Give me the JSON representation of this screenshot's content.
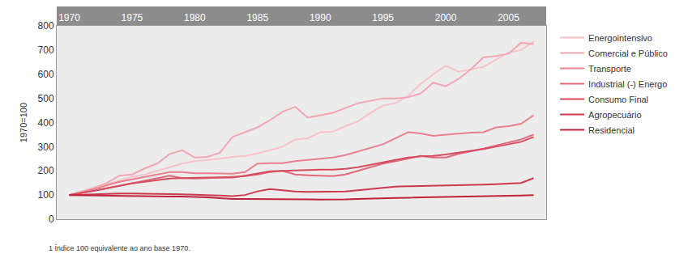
{
  "chart_data": {
    "type": "line",
    "y_label": "1970=100",
    "note": "1 Índice 100 equivalente ao ano base 1970.",
    "x": [
      1970,
      1971,
      1972,
      1973,
      1974,
      1975,
      1976,
      1977,
      1978,
      1979,
      1980,
      1981,
      1982,
      1983,
      1984,
      1985,
      1986,
      1987,
      1988,
      1989,
      1990,
      1991,
      1992,
      1993,
      1994,
      1995,
      1996,
      1997,
      1998,
      1999,
      2000,
      2001,
      2002,
      2003,
      2004,
      2005,
      2006,
      2007
    ],
    "xlim": [
      1969,
      2008
    ],
    "xticks": [
      1970,
      1975,
      1980,
      1985,
      1990,
      1995,
      2000,
      2005
    ],
    "ylim": [
      0,
      800
    ],
    "yticks": [
      0,
      100,
      200,
      300,
      400,
      500,
      600,
      700,
      800
    ],
    "grid": false,
    "legend": "right",
    "series": [
      {
        "name": "Energointensivo",
        "color": "#f7c3cc",
        "values": [
          100,
          115,
          130,
          145,
          160,
          175,
          185,
          200,
          215,
          230,
          240,
          245,
          250,
          258,
          262,
          272,
          285,
          300,
          330,
          335,
          360,
          362,
          385,
          405,
          440,
          470,
          480,
          510,
          560,
          600,
          635,
          610,
          620,
          630,
          660,
          690,
          700,
          735
        ]
      },
      {
        "name": "Comercial e Público",
        "color": "#f2a6b3",
        "values": [
          100,
          115,
          130,
          150,
          180,
          185,
          210,
          230,
          270,
          285,
          255,
          258,
          275,
          340,
          360,
          380,
          410,
          445,
          465,
          420,
          430,
          440,
          460,
          480,
          490,
          500,
          500,
          505,
          520,
          565,
          550,
          580,
          620,
          670,
          675,
          685,
          730,
          725
        ]
      },
      {
        "name": "Transporte",
        "color": "#e8808f",
        "values": [
          100,
          110,
          125,
          140,
          155,
          165,
          175,
          185,
          195,
          195,
          190,
          190,
          188,
          188,
          195,
          230,
          232,
          232,
          240,
          245,
          250,
          255,
          265,
          280,
          295,
          310,
          335,
          360,
          355,
          345,
          350,
          355,
          358,
          360,
          380,
          385,
          395,
          430
        ]
      },
      {
        "name": "Industrial (-) Energo",
        "color": "#e06a7b",
        "values": [
          100,
          108,
          118,
          128,
          138,
          148,
          158,
          168,
          180,
          170,
          168,
          170,
          172,
          175,
          178,
          185,
          195,
          200,
          185,
          182,
          180,
          178,
          185,
          200,
          215,
          230,
          240,
          252,
          262,
          255,
          255,
          270,
          280,
          292,
          305,
          318,
          330,
          350
        ]
      },
      {
        "name": "Consumo Final",
        "color": "#d74b60",
        "values": [
          100,
          108,
          118,
          128,
          138,
          148,
          155,
          162,
          168,
          170,
          172,
          172,
          172,
          172,
          180,
          190,
          198,
          200,
          202,
          203,
          205,
          205,
          208,
          215,
          225,
          235,
          245,
          255,
          260,
          262,
          268,
          275,
          283,
          290,
          300,
          310,
          320,
          340
        ]
      },
      {
        "name": "Agropecuário",
        "color": "#cc3a51",
        "values": [
          100,
          102,
          104,
          105,
          106,
          106,
          106,
          105,
          104,
          103,
          102,
          100,
          98,
          95,
          100,
          115,
          125,
          120,
          115,
          113,
          114,
          114,
          115,
          120,
          125,
          132,
          135,
          136,
          137,
          138,
          138,
          140,
          141,
          143,
          145,
          147,
          150,
          170
        ]
      },
      {
        "name": "Residencial",
        "color": "#bd233c",
        "values": [
          100,
          99,
          98,
          97,
          96,
          95,
          95,
          95,
          94,
          94,
          93,
          90,
          87,
          84,
          84,
          84,
          84,
          83,
          82,
          82,
          81,
          81,
          82,
          84,
          86,
          87,
          88,
          89,
          90,
          90,
          90,
          91,
          92,
          93,
          95,
          97,
          98,
          100
        ]
      }
    ]
  }
}
